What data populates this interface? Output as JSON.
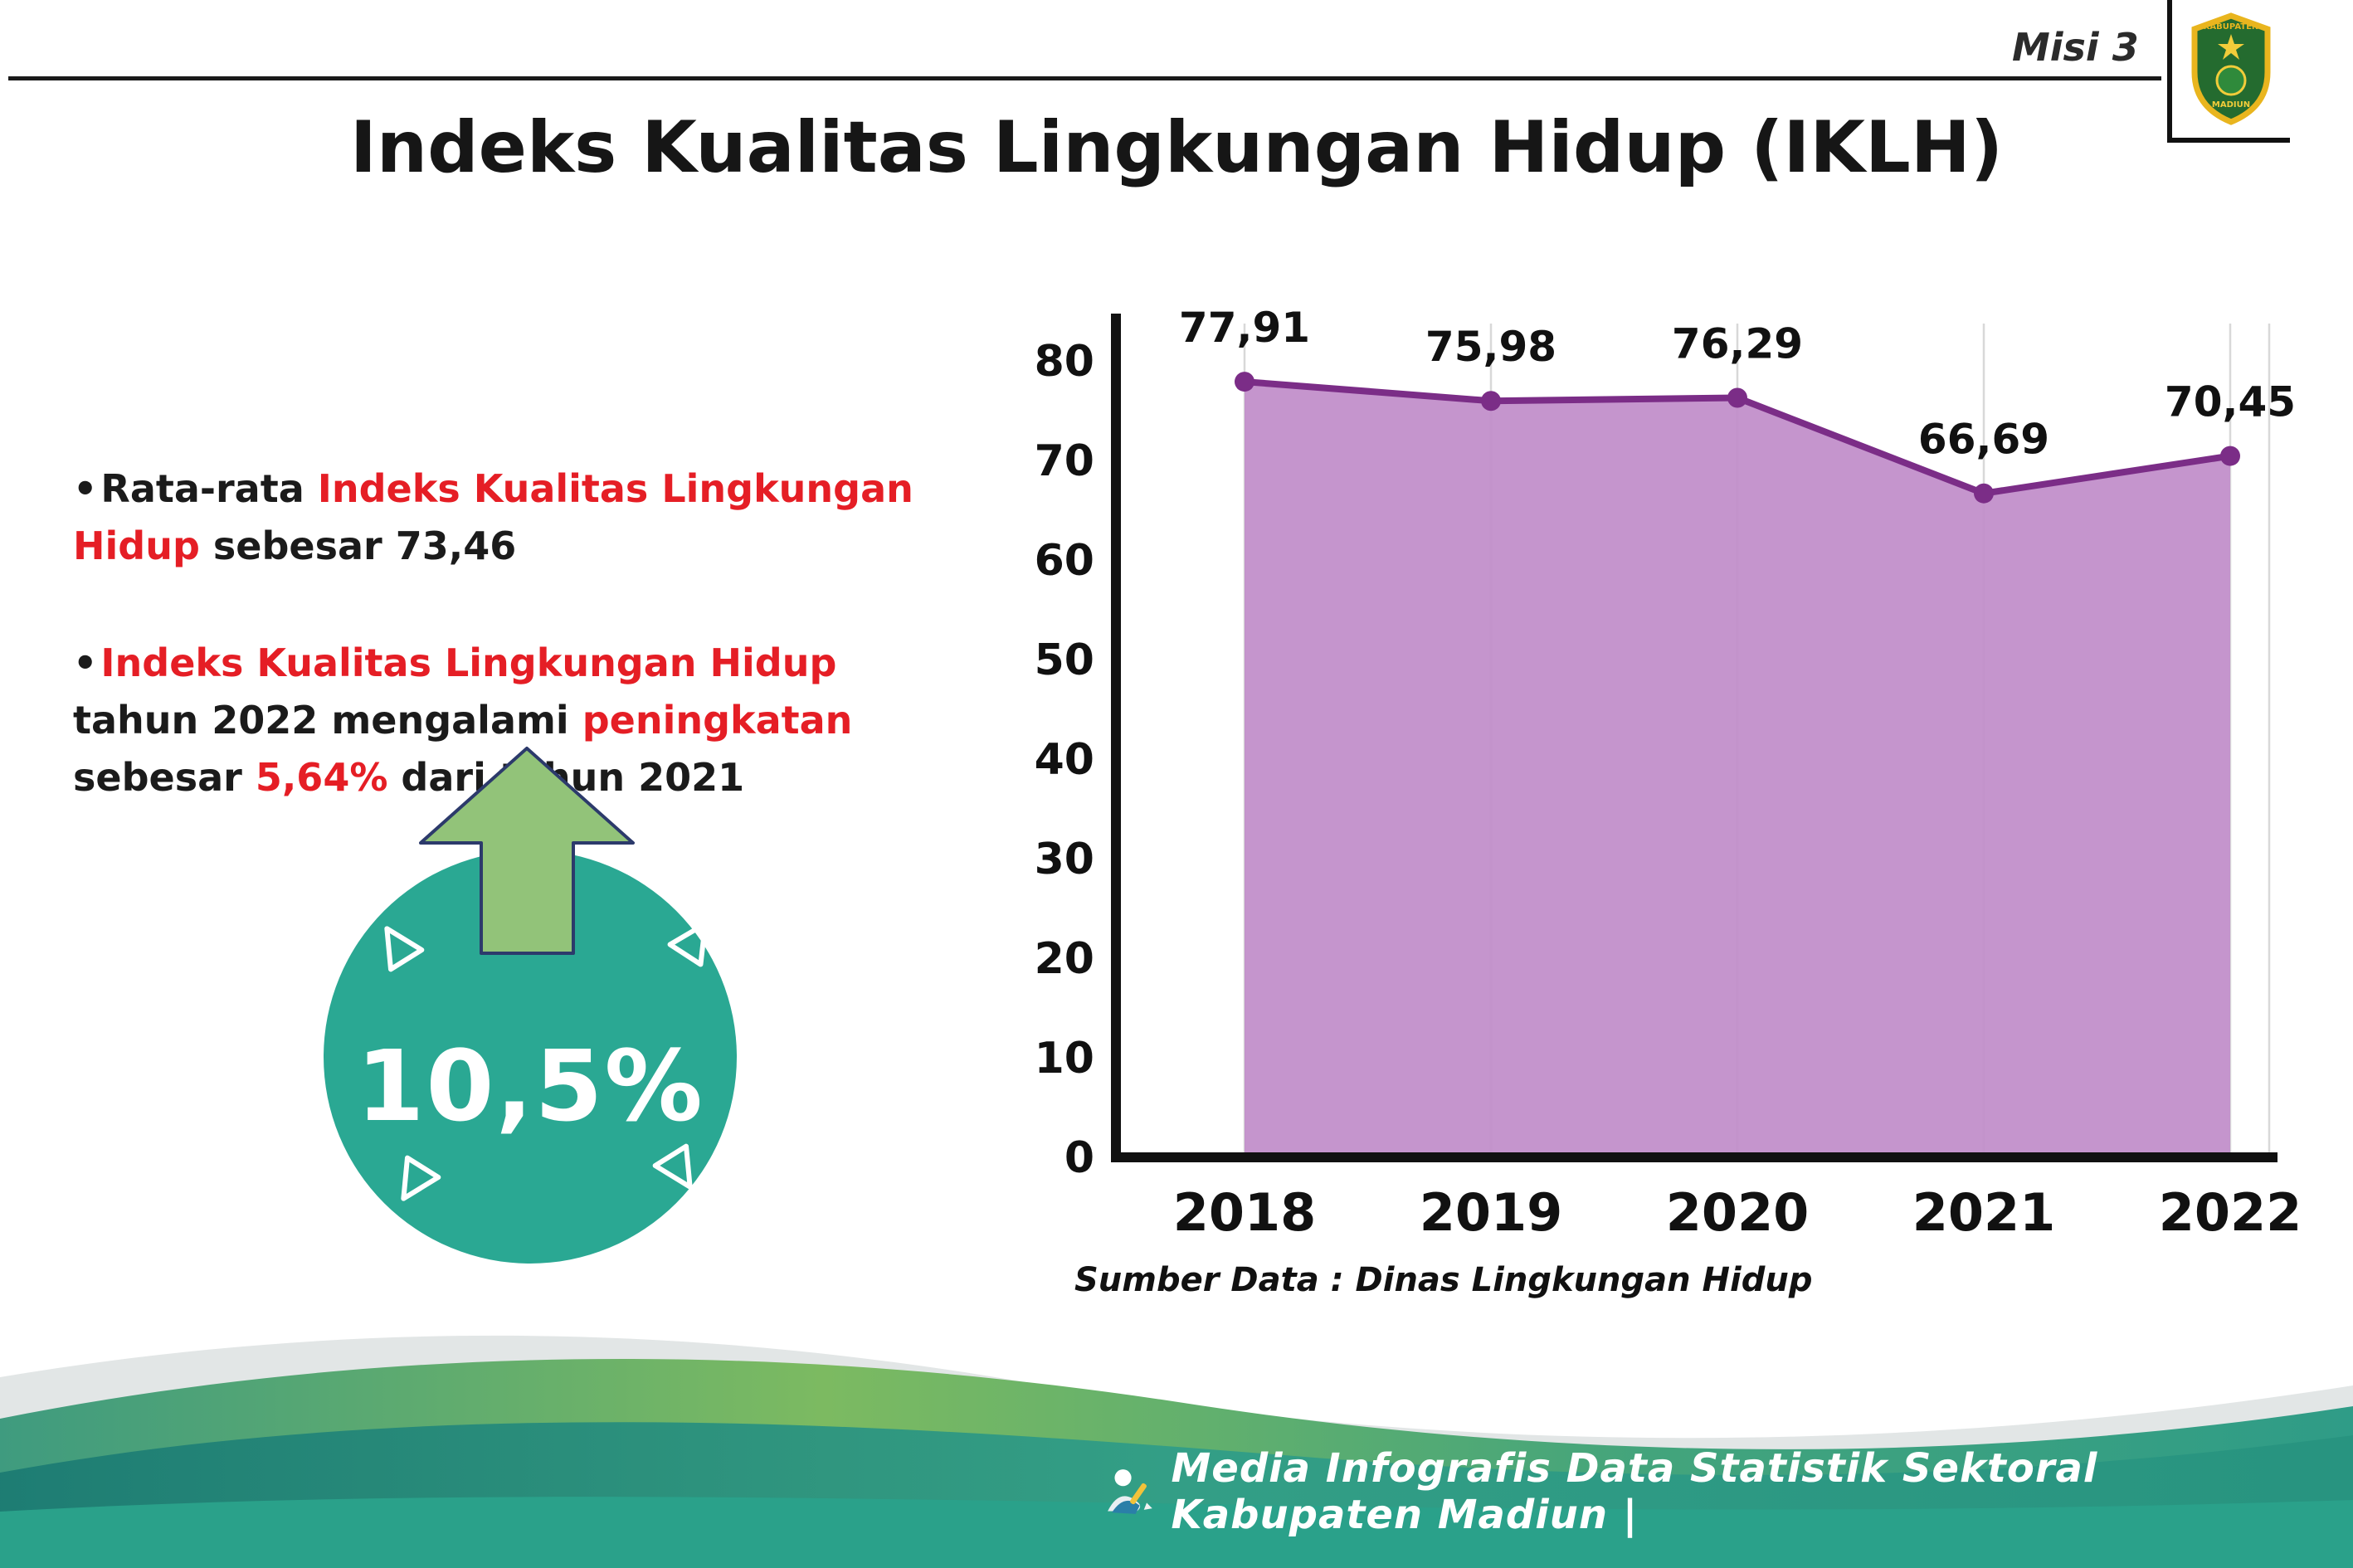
{
  "header": {
    "misi_label": "Misi 3",
    "title": "Indeks Kualitas Lingkungan Hidup (IKLH)",
    "logo": {
      "name": "Kabupaten Madiun",
      "text_top": "KABUPATEN",
      "text_bottom": "MADIUN"
    }
  },
  "colors": {
    "text": "#1b1b1b",
    "red": "#e51e25",
    "line": "#7b2d87",
    "fill": "#c28fca",
    "teal": "#2aa893",
    "arrow_green": "#92c379"
  },
  "bullets": [
    {
      "segments": [
        {
          "t": "Rata-rata ",
          "c": "text"
        },
        {
          "t": "Indeks Kualitas Lingkungan Hidup",
          "c": "red"
        },
        {
          "t": " sebesar 73,46",
          "c": "text"
        }
      ]
    },
    {
      "segments": [
        {
          "t": "Indeks Kualitas Lingkungan Hidup",
          "c": "red"
        },
        {
          "t": " tahun 2022 mengalami ",
          "c": "text"
        },
        {
          "t": "peningkatan",
          "c": "red"
        },
        {
          "t": " sebesar ",
          "c": "text"
        },
        {
          "t": "5,64%",
          "c": "red"
        },
        {
          "t": " dari tahun 2021",
          "c": "text"
        }
      ]
    }
  ],
  "badge": {
    "value": "10,5%"
  },
  "chart_data": {
    "type": "area",
    "title": "Indeks Kualitas Lingkungan Hidup (IKLH)",
    "categories": [
      "2018",
      "2019",
      "2020",
      "2021",
      "2022"
    ],
    "values": [
      77.91,
      75.98,
      76.29,
      66.69,
      70.45
    ],
    "value_labels": [
      "77,91",
      "75,98",
      "76,29",
      "66,69",
      "70,45"
    ],
    "ylim": [
      0,
      80
    ],
    "ytick_step": 10,
    "grid": "vertical-light",
    "legend": "none",
    "line_color": "#7b2d87",
    "fill_color": "#c28fca",
    "axis_color": "#111111",
    "source_note": "Sumber Data : Dinas Lingkungan Hidup"
  },
  "footer": {
    "text": "Media Infografis Data Statistik Sektoral Kabupaten Madiun |"
  }
}
